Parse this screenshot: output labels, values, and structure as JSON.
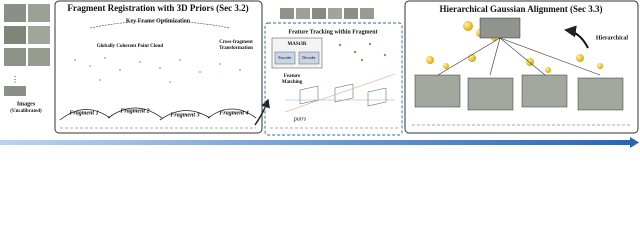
{
  "images_label": "Images",
  "images_sublabel": "(Uncalibrated)",
  "panel1": {
    "title": "Fragment Registration with 3D Priors (Sec 3.2)",
    "subtitle": "Key Frame Optimization",
    "point_cloud": "Globally Coherent Point Cloud",
    "transform": [
      "Cross-fragment",
      "Transformation"
    ],
    "fragments": [
      "Fragment 1",
      "Fragment 2",
      "Fragment 3",
      "Fragment 4"
    ]
  },
  "panel2": {
    "title": "Feature Tracking within Fragment",
    "model": "MASt3R",
    "encoder": "Encoder",
    "decoder": "Decoder",
    "matching": [
      "Feature",
      "Matching"
    ],
    "pairs": "pairs"
  },
  "panel3": {
    "title": "Hierarchical Gaussian Alignment (Sec 3.3)",
    "arrow_label": "Hierarchical"
  }
}
